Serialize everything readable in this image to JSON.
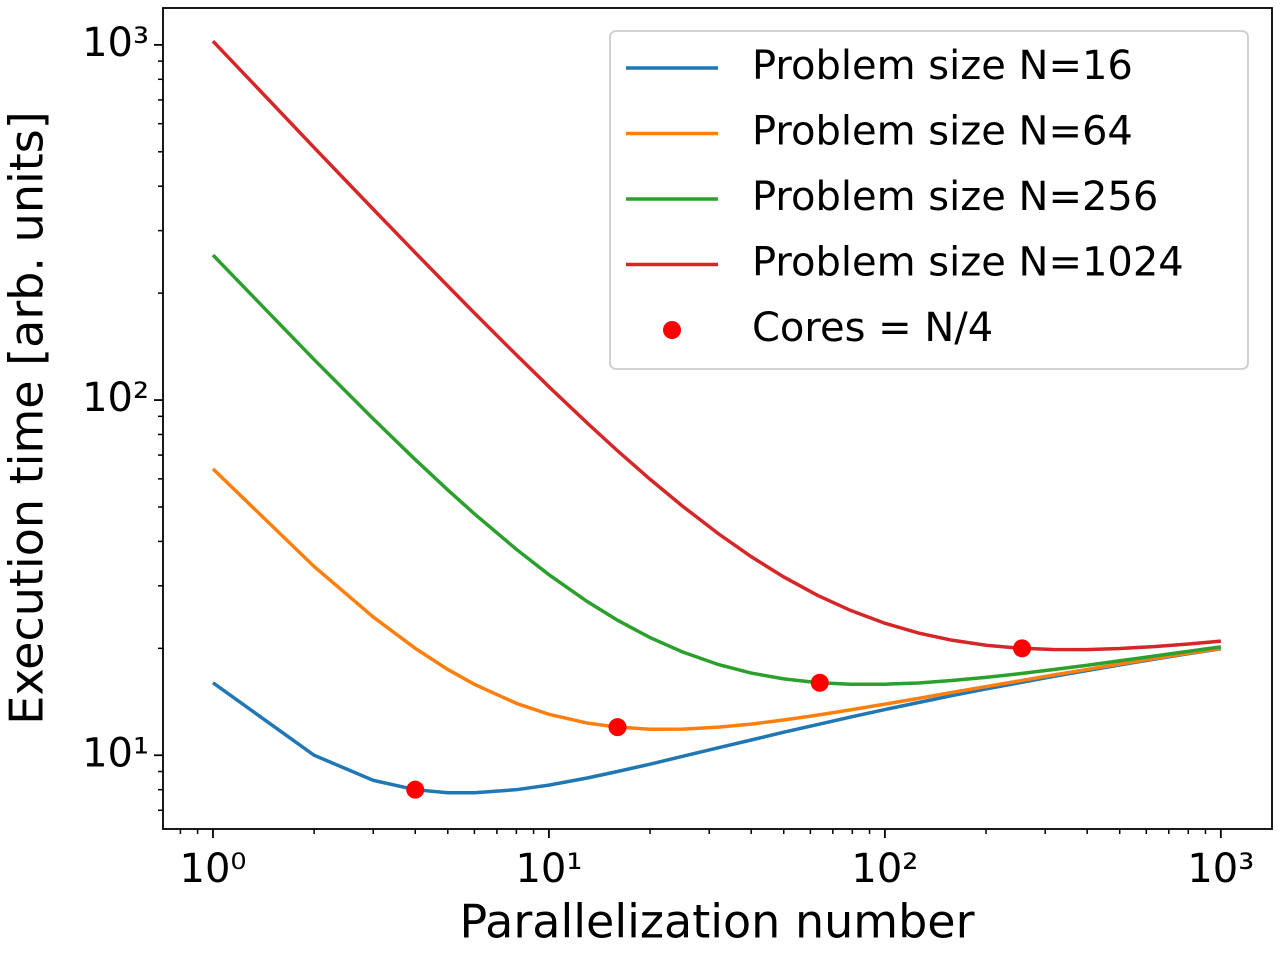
{
  "chart_data": {
    "type": "line",
    "xlabel": "Parallelization number",
    "ylabel": "Execution time [arb. units]",
    "x": [
      1,
      2,
      3,
      4,
      5,
      6,
      8,
      10,
      13,
      16,
      20,
      25,
      32,
      40,
      50,
      63,
      79,
      100,
      126,
      158,
      200,
      251,
      316,
      398,
      501,
      631,
      794,
      1000
    ],
    "series": [
      {
        "name": "Problem size N=16",
        "color": "#1f77b4",
        "values": [
          16,
          10,
          8.5,
          8,
          7.84,
          7.84,
          8,
          8.24,
          8.63,
          9,
          9.44,
          9.93,
          10.5,
          11.04,
          11.61,
          12.2,
          12.81,
          13.45,
          14.08,
          14.71,
          15.37,
          16.0,
          16.66,
          17.31,
          17.97,
          18.63,
          19.29,
          19.95
        ]
      },
      {
        "name": "Problem size N=64",
        "color": "#ff7f0e",
        "values": [
          64,
          34,
          24.5,
          20,
          17.44,
          15.84,
          14,
          13.04,
          12.32,
          12,
          11.84,
          11.85,
          12,
          12.24,
          12.57,
          12.97,
          13.42,
          13.93,
          14.46,
          15.02,
          15.61,
          16.19,
          16.81,
          17.43,
          18.07,
          18.7,
          19.35,
          19.99
        ]
      },
      {
        "name": "Problem size N=256",
        "color": "#2ca02c",
        "values": [
          256,
          130,
          88.5,
          68,
          55.84,
          47.84,
          38,
          32.24,
          27.09,
          24,
          21.44,
          19.53,
          18,
          17.04,
          16.41,
          16.01,
          15.85,
          15.85,
          15.98,
          16.23,
          16.57,
          16.96,
          17.42,
          17.91,
          18.45,
          19.01,
          19.59,
          20.19
        ]
      },
      {
        "name": "Problem size N=1024",
        "color": "#d62728",
        "values": [
          1024,
          514,
          344.5,
          260,
          209.44,
          175.84,
          134,
          109.04,
          86.17,
          72,
          59.84,
          50.25,
          42,
          36.24,
          31.77,
          28.2,
          25.57,
          23.53,
          22.08,
          21.09,
          20.41,
          20.02,
          19.85,
          19.84,
          19.98,
          20.22,
          20.56,
          20.95
        ]
      }
    ],
    "points": {
      "name": "Cores = N/4",
      "color": "#ff0000",
      "type": "scatter",
      "x": [
        4,
        16,
        64,
        256
      ],
      "values": [
        8,
        12,
        16,
        20
      ]
    },
    "xscale": "log",
    "yscale": "log",
    "xlim": [
      0.71,
      1420
    ],
    "ylim": [
      6.2,
      1270
    ],
    "xticks": [
      {
        "value": 1,
        "label": "10⁰"
      },
      {
        "value": 10,
        "label": "10¹"
      },
      {
        "value": 100,
        "label": "10²"
      },
      {
        "value": 1000,
        "label": "10³"
      }
    ],
    "yticks": [
      {
        "value": 10,
        "label": "10¹"
      },
      {
        "value": 100,
        "label": "10²"
      },
      {
        "value": 1000,
        "label": "10³"
      }
    ],
    "minor_ticks": true,
    "legend": "upper right"
  }
}
